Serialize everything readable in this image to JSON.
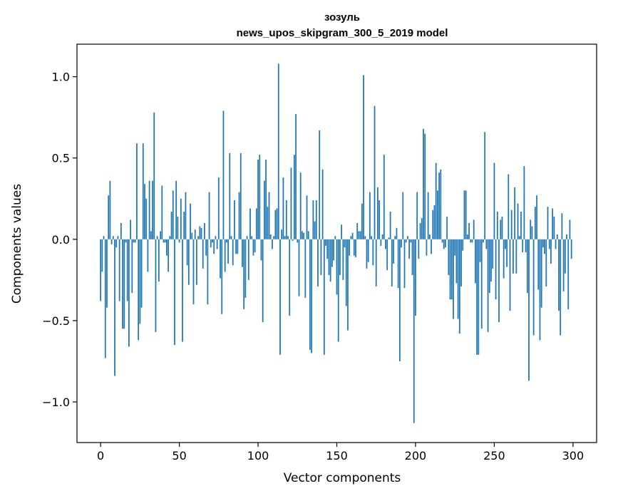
{
  "chart_data": {
    "type": "bar",
    "title": "зозуль",
    "subtitle": "news_upos_skipgram_300_5_2019 model",
    "xlabel": "Vector components",
    "ylabel": "Components values",
    "xlim": [
      -15,
      315
    ],
    "ylim": [
      -1.25,
      1.2
    ],
    "xticks": [
      0,
      50,
      100,
      150,
      200,
      250,
      300
    ],
    "yticks": [
      -1.0,
      -0.5,
      0.0,
      0.5,
      1.0
    ],
    "ytick_labels": [
      "−1.0",
      "−0.5",
      "0.0",
      "0.5",
      "1.0"
    ],
    "color": "#1f77b4",
    "grid": false,
    "values": [
      -0.38,
      -0.2,
      0.02,
      -0.73,
      -0.42,
      0.27,
      0.36,
      -0.03,
      0.02,
      -0.84,
      -0.05,
      0.02,
      -0.38,
      0.1,
      -0.55,
      -0.55,
      -0.02,
      -0.38,
      -0.66,
      0.12,
      -0.33,
      -0.02,
      -0.02,
      0.59,
      -0.62,
      -0.52,
      -0.42,
      0.59,
      0.34,
      0.25,
      -0.2,
      0.36,
      0.05,
      0.36,
      0.78,
      -0.57,
      0.02,
      -0.26,
      0.05,
      0.33,
      -0.02,
      -0.02,
      -0.1,
      -0.2,
      0.02,
      0.17,
      0.3,
      -0.65,
      0.36,
      0.14,
      -0.02,
      0.25,
      -0.63,
      0.17,
      0.29,
      -0.16,
      -0.28,
      0.22,
      0.04,
      -0.4,
      0.06,
      -0.28,
      0.02,
      0.08,
      0.07,
      -0.18,
      0.1,
      -0.1,
      -0.4,
      0.29,
      -0.05,
      -0.02,
      -0.09,
      0.02,
      -0.06,
      0.38,
      -0.24,
      -0.46,
      0.79,
      -0.2,
      -0.02,
      -0.15,
      0.53,
      0.02,
      -0.16,
      0.24,
      -0.09,
      -0.09,
      0.29,
      0.53,
      -0.17,
      -0.43,
      -0.36,
      0.02,
      -0.25,
      0.19,
      0.02,
      -0.1,
      -0.08,
      0.19,
      0.49,
      0.52,
      -0.13,
      -0.51,
      0.36,
      0.49,
      0.2,
      0.29,
      0.03,
      -0.06,
      0.02,
      0.18,
      0.19,
      1.08,
      -0.71,
      0.06,
      0.38,
      0.02,
      0.24,
      0.02,
      -0.47,
      0.44,
      -0.01,
      0.52,
      0.77,
      -0.02,
      -0.35,
      0.41,
      0.05,
      0.04,
      -0.36,
      0.27,
      0.05,
      -0.68,
      -0.7,
      0.24,
      0.11,
      0.24,
      -0.29,
      0.67,
      -0.22,
      0.43,
      -0.71,
      -0.04,
      -0.12,
      -0.22,
      -0.26,
      -0.17,
      -0.13,
      0.02,
      -0.34,
      -0.63,
      -0.22,
      0.09,
      -0.25,
      -0.05,
      -0.41,
      -0.56,
      -0.1,
      0.02,
      0.04,
      -0.1,
      -0.11,
      0.1,
      0.05,
      0.05,
      0.22,
      1.01,
      0.02,
      -0.18,
      -0.14,
      0.29,
      0.02,
      -0.16,
      0.82,
      -0.29,
      0.32,
      0.24,
      -0.04,
      0.03,
      0.52,
      -0.06,
      -0.19,
      0.01,
      0.17,
      -0.29,
      -0.15,
      0.02,
      0.07,
      -0.3,
      -0.75,
      -0.05,
      0.29,
      -0.3,
      -0.02,
      0.02,
      -0.12,
      -0.02,
      -0.22,
      -1.13,
      -0.47,
      0.29,
      -0.12,
      0.1,
      0.13,
      0.68,
      0.65,
      -0.1,
      0.29,
      0.03,
      -0.09,
      0.18,
      0.21,
      0.47,
      0.3,
      0.41,
      0.43,
      -0.02,
      -0.06,
      -0.05,
      0.14,
      -0.22,
      -0.37,
      -0.37,
      -0.49,
      -0.1,
      -0.27,
      -0.49,
      -0.58,
      -0.29,
      -0.07,
      0.3,
      0.3,
      0.03,
      0.1,
      -0.02,
      -0.02,
      0.12,
      -0.27,
      -0.71,
      -0.71,
      -0.14,
      -0.55,
      -0.02,
      0.66,
      -0.06,
      -0.57,
      -0.33,
      -0.26,
      -0.18,
      0.47,
      -0.37,
      0.17,
      -0.51,
      0.12,
      0.14,
      -0.24,
      -0.06,
      -0.17,
      0.4,
      -0.44,
      0.18,
      -0.21,
      0.32,
      -0.21,
      0.22,
      0.02,
      0.17,
      -0.08,
      0.45,
      -0.08,
      -0.33,
      -0.87,
      0.12,
      0.08,
      -0.59,
      0.2,
      0.27,
      -0.31,
      -0.62,
      -0.42,
      -0.05,
      -0.09,
      -0.29,
      0.2,
      -0.06,
      -0.15,
      0.19,
      0.14,
      -0.06,
      0.03,
      -0.44,
      -0.59,
      0.16,
      -0.32,
      -0.21,
      0.03,
      -0.43,
      0.12,
      -0.12
    ]
  }
}
